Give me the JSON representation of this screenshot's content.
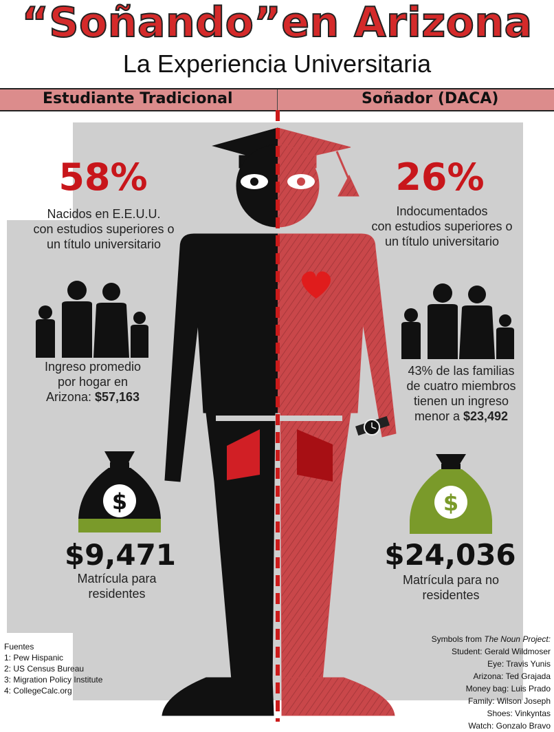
{
  "header": {
    "title": "“Soñando”en Arizona",
    "subtitle": "La Experiencia Universitaria"
  },
  "banner": {
    "left_label": "Estudiante Tradicional",
    "right_label": "Soñador (DACA)"
  },
  "left": {
    "stat_percent": "58%",
    "stat_lines": [
      "Nacidos en E.E.U.U.",
      "con estudios superiores o",
      "un título universitario"
    ],
    "income_lines": [
      "Ingreso promedio",
      "por hogar en"
    ],
    "income_prefix": "Arizona: ",
    "income_value": "$57,163",
    "tuition_value": "$9,471",
    "tuition_lines": [
      "Matrícula para",
      "residentes"
    ]
  },
  "right": {
    "stat_percent": "26%",
    "stat_lines": [
      "Indocumentados",
      "con estudios superiores o",
      "un título universitario"
    ],
    "income_lines": [
      "43% de las familias",
      "de cuatro miembros",
      "tienen un ingreso"
    ],
    "income_prefix": "menor a  ",
    "income_value": "$23,492",
    "tuition_value": "$24,036",
    "tuition_lines": [
      "Matrícula para no",
      "residentes"
    ]
  },
  "sources": {
    "heading": "Fuentes",
    "items": [
      "1: Pew Hispanic",
      "2: US Census Bureau",
      "3: Migration Policy Institute",
      "4: CollegeCalc.org"
    ]
  },
  "credits": {
    "prefix": "Symbols from ",
    "project": "The Noun Project:",
    "items": [
      "Student: Gerald Wildmoser",
      "Eye: Travis Yunis",
      "Arizona: Ted Grajada",
      "Money bag: Luis Prado",
      "Family: Wilson Joseph",
      "Shoes: Vinkyntas",
      "Watch: Gonzalo Bravo"
    ]
  },
  "icons": {
    "figure": "student-figure-icon",
    "eye": "eye-icon",
    "heart": "heart-icon",
    "watch": "watch-icon",
    "family": "family-icon",
    "money_bag": "money-bag-icon",
    "dollar_glyph": "$"
  },
  "colors": {
    "title_red": "#d42a2a",
    "accent_red": "#c8161b",
    "banner_pink": "#dc8c8c",
    "figure_black": "#111111",
    "figure_red": "#c9474a",
    "bag_green": "#7a9a2a"
  }
}
